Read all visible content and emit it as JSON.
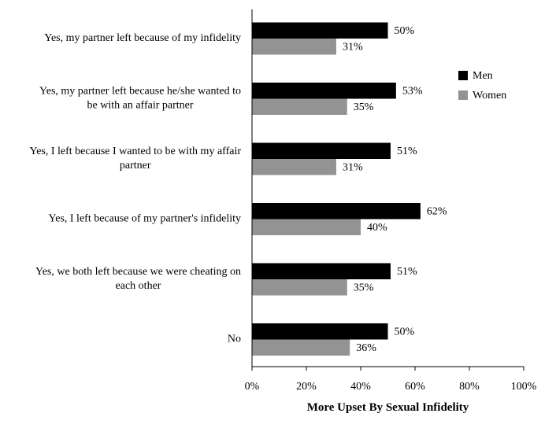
{
  "chart_data": {
    "type": "bar",
    "orientation": "horizontal",
    "categories": [
      [
        "Yes, my partner left because of my infidelity"
      ],
      [
        "Yes, my partner left because he/she wanted to",
        "be with an affair partner"
      ],
      [
        "Yes, I left because I wanted to be with my affair",
        "partner"
      ],
      [
        "Yes, I left because of my partner's infidelity"
      ],
      [
        "Yes, we both left because we were cheating on",
        "each other"
      ],
      [
        "No"
      ]
    ],
    "series": [
      {
        "name": "Men",
        "values": [
          50,
          53,
          51,
          62,
          51,
          50
        ],
        "color": "#000000"
      },
      {
        "name": "Women",
        "values": [
          31,
          35,
          31,
          40,
          35,
          36
        ],
        "color": "#939393"
      }
    ],
    "value_suffix": "%",
    "xlim": [
      0,
      100
    ],
    "xticks": [
      "0%",
      "20%",
      "40%",
      "60%",
      "80%",
      "100%"
    ],
    "xlabel": "More Upset By Sexual Infidelity",
    "legend_position": "right",
    "grid": false
  }
}
